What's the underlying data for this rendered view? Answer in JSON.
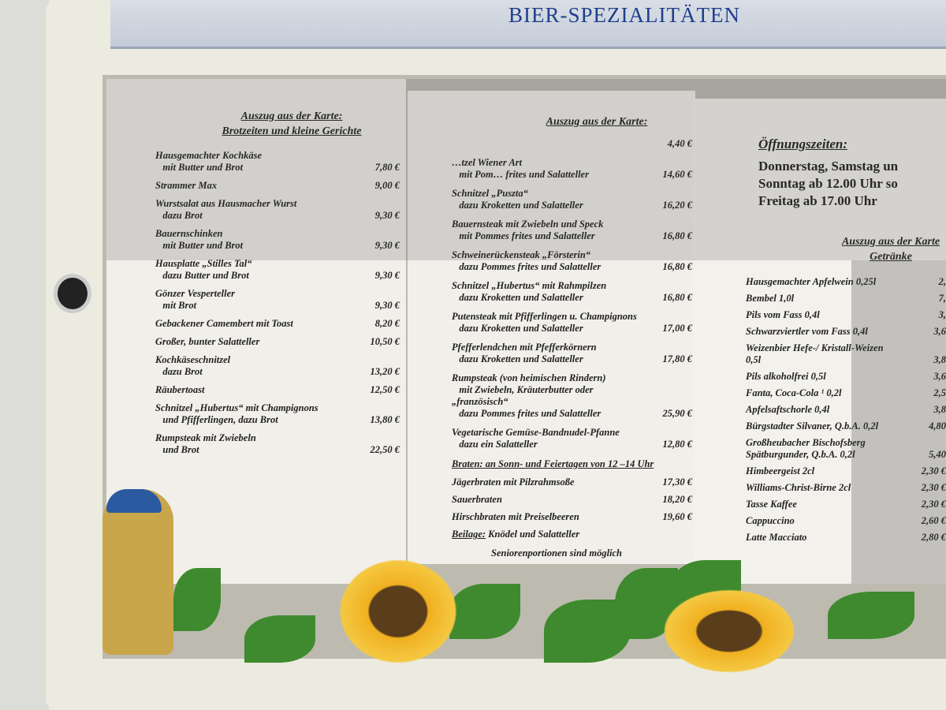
{
  "sign": {
    "title": "BIER-SPEZIALITÄTEN"
  },
  "left": {
    "heading": "Auszug aus der Karte:\nBrotzeiten und kleine Gerichte",
    "items": [
      {
        "name": "Hausgemachter Kochkäse\n   mit Butter und Brot",
        "price": "7,80 €"
      },
      {
        "name": "Strammer Max",
        "price": "9,00 €"
      },
      {
        "name": "Wurstsalat aus Hausmacher Wurst\n   dazu Brot",
        "price": "9,30 €"
      },
      {
        "name": "Bauernschinken\n   mit Butter und Brot",
        "price": "9,30 €"
      },
      {
        "name": "Hausplatte „Stilles Tal“\n   dazu Butter und Brot",
        "price": "9,30 €"
      },
      {
        "name": "Gönzer Vesperteller\n   mit Brot",
        "price": "9,30 €"
      },
      {
        "name": "Gebackener Camembert mit Toast",
        "price": "8,20 €"
      },
      {
        "name": "Großer, bunter Salatteller",
        "price": "10,50 €"
      },
      {
        "name": "Kochkäseschnitzel\n   dazu Brot",
        "price": "13,20 €"
      },
      {
        "name": "Räubertoast",
        "price": "12,50 €"
      },
      {
        "name": "Schnitzel „Hubertus“ mit Champignons\n   und Pfifferlingen, dazu Brot",
        "price": "13,80 €"
      },
      {
        "name": "Rumpsteak mit Zwiebeln\n   und Brot",
        "price": "22,50 €"
      }
    ]
  },
  "middle": {
    "heading": "Auszug aus der Karte:",
    "items": [
      {
        "name": "",
        "price": "4,40 €"
      },
      {
        "name": "…tzel Wiener Art\n   mit Pom… frites und Salatteller",
        "price": "14,60 €"
      },
      {
        "name": "Schnitzel „Puszta“\n   dazu Kroketten und Salatteller",
        "price": "16,20 €"
      },
      {
        "name": "Bauernsteak mit Zwiebeln und Speck\n   mit Pommes frites und Salatteller",
        "price": "16,80 €"
      },
      {
        "name": "Schweinerückensteak „Försterin“\n   dazu Pommes frites und Salatteller",
        "price": "16,80 €"
      },
      {
        "name": "Schnitzel „Hubertus“ mit Rahmpilzen\n   dazu Kroketten und Salatteller",
        "price": "16,80 €"
      },
      {
        "name": "Putensteak mit Pfifferlingen u. Champignons\n   dazu Kroketten und Salatteller",
        "price": "17,00 €"
      },
      {
        "name": "Pfefferlendchen mit Pfefferkörnern\n   dazu Kroketten und Salatteller",
        "price": "17,80 €"
      },
      {
        "name": "Rumpsteak (von heimischen Rindern)\n   mit Zwiebeln, Kräuterbutter oder „französisch“\n   dazu Pommes frites und Salatteller",
        "price": "25,90 €"
      },
      {
        "name": "Vegetarische Gemüse-Bandnudel-Pfanne\n   dazu ein Salatteller",
        "price": "12,80 €"
      }
    ],
    "roast_heading": "Braten: an Sonn- und Feiertagen von 12 –14 Uhr",
    "roasts": [
      {
        "name": "Jägerbraten mit Pilzrahmsoße",
        "price": "17,30 €"
      },
      {
        "name": "Sauerbraten",
        "price": "18,20 €"
      },
      {
        "name": "Hirschbraten mit Preiselbeeren",
        "price": "19,60 €"
      }
    ],
    "side_label": "Beilage:",
    "side_text": " Knödel und Salatteller",
    "note": "Seniorenportionen sind möglich"
  },
  "right": {
    "hours_heading": "Öffnungszeiten:",
    "hours": [
      "Donnerstag, Samstag un",
      "Sonntag ab 12.00 Uhr so",
      "Freitag ab 17.00 Uhr"
    ],
    "heading": "Auszug aus der Karte\nGetränke",
    "items": [
      {
        "name": "Hausgemachter Apfelwein 0,25l",
        "price": "2,"
      },
      {
        "name": "Bembel 1,0l",
        "price": "7,"
      },
      {
        "name": "Pils vom Fass 0,4l",
        "price": "3,"
      },
      {
        "name": "Schwarzviertler vom Fass 0,4l",
        "price": "3,6"
      },
      {
        "name": "Weizenbier Hefe-/ Kristall-Weizen 0,5l",
        "price": "3,8"
      },
      {
        "name": "Pils alkoholfrei 0,5l",
        "price": "3,6"
      },
      {
        "name": "Fanta, Coca-Cola ¹ 0,2l",
        "price": "2,5"
      },
      {
        "name": "Apfelsaftschorle 0,4l",
        "price": "3,8"
      },
      {
        "name": "Bürgstadter Silvaner, Q.b.A. 0,2l",
        "price": "4,80"
      },
      {
        "name": "Großheubacher Bischofsberg\nSpätburgunder, Q.b.A. 0,2l",
        "price": "5,40"
      },
      {
        "name": "Himbeergeist 2cl",
        "price": "2,30 €"
      },
      {
        "name": "Williams-Christ-Birne 2cl",
        "price": "2,30 €"
      },
      {
        "name": "Tasse Kaffee",
        "price": "2,30 €"
      },
      {
        "name": "Cappuccino",
        "price": "2,60 €"
      },
      {
        "name": "Latte Macciato",
        "price": "2,80 €"
      }
    ]
  }
}
